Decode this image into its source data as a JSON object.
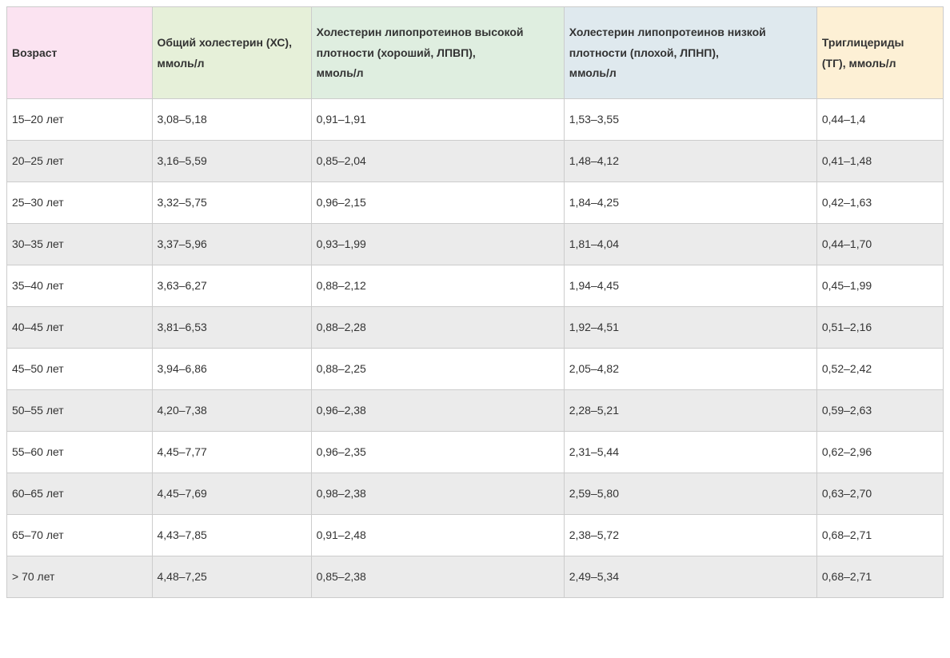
{
  "table": {
    "columns": [
      {
        "line1": "Возраст",
        "line2": "",
        "line3": "",
        "width": "15.5%",
        "bg": "#fbe3f1"
      },
      {
        "line1": "Общий холестерин (ХС),",
        "line2": "",
        "line3": "ммоль/л",
        "width": "17%",
        "bg": "#e6f0d9"
      },
      {
        "line1": "Холестерин липопротеинов высокой",
        "line2": "плотности (хороший, ЛПВП),",
        "line3": "ммоль/л",
        "width": "27%",
        "bg": "#dfeee0"
      },
      {
        "line1": "Холестерин липопротеинов низкой",
        "line2": "плотности (плохой, ЛПНП),",
        "line3": "ммоль/л",
        "width": "27%",
        "bg": "#dfe9ee"
      },
      {
        "line1": "Триглицериды",
        "line2": "",
        "line3": "(ТГ), ммоль/л",
        "width": "13.5%",
        "bg": "#fdf0d5"
      }
    ],
    "rows": [
      [
        "15–20 лет",
        "3,08–5,18",
        "0,91–1,91",
        "1,53–3,55",
        "0,44–1,4"
      ],
      [
        "20–25 лет",
        "3,16–5,59",
        "0,85–2,04",
        "1,48–4,12",
        "0,41–1,48"
      ],
      [
        "25–30 лет",
        "3,32–5,75",
        "0,96–2,15",
        "1,84–4,25",
        "0,42–1,63"
      ],
      [
        "30–35 лет",
        "3,37–5,96",
        "0,93–1,99",
        "1,81–4,04",
        "0,44–1,70"
      ],
      [
        "35–40 лет",
        "3,63–6,27",
        "0,88–2,12",
        "1,94–4,45",
        "0,45–1,99"
      ],
      [
        "40–45 лет",
        "3,81–6,53",
        "0,88–2,28",
        "1,92–4,51",
        "0,51–2,16"
      ],
      [
        "45–50 лет",
        "3,94–6,86",
        "0,88–2,25",
        "2,05–4,82",
        "0,52–2,42"
      ],
      [
        "50–55 лет",
        "4,20–7,38",
        "0,96–2,38",
        "2,28–5,21",
        "0,59–2,63"
      ],
      [
        "55–60 лет",
        "4,45–7,77",
        "0,96–2,35",
        "2,31–5,44",
        "0,62–2,96"
      ],
      [
        "60–65 лет",
        "4,45–7,69",
        "0,98–2,38",
        "2,59–5,80",
        "0,63–2,70"
      ],
      [
        "65–70 лет",
        "4,43–7,85",
        "0,91–2,48",
        "2,38–5,72",
        "0,68–2,71"
      ],
      [
        "> 70 лет",
        "4,48–7,25",
        "0,85–2,38",
        "2,49–5,34",
        "0,68–2,71"
      ]
    ],
    "border_color": "#cccccc",
    "stripe_color": "#ebebeb"
  }
}
